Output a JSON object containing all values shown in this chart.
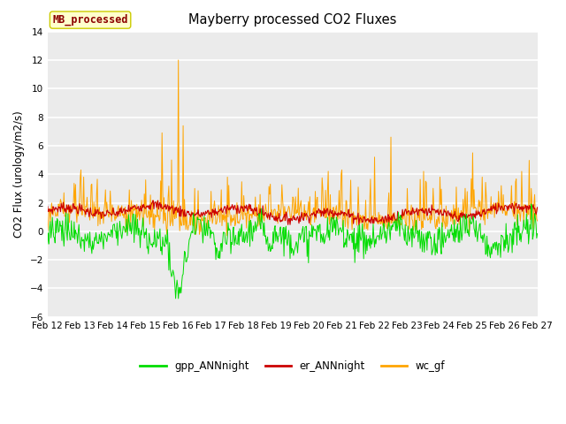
{
  "title": "Mayberry processed CO2 Fluxes",
  "ylabel": "CO2 Flux (urology/m2/s)",
  "ylim": [
    -6,
    14
  ],
  "yticks": [
    -6,
    -4,
    -2,
    0,
    2,
    4,
    6,
    8,
    10,
    12,
    14
  ],
  "background_color": "#ebebeb",
  "grid_color": "#ffffff",
  "legend_label": "MB_processed",
  "legend_text_color": "#8b0000",
  "legend_box_facecolor": "#ffffcc",
  "legend_box_edgecolor": "#cccc00",
  "series": {
    "gpp_ANNnight": {
      "color": "#00dd00",
      "label": "gpp_ANNnight"
    },
    "er_ANNnight": {
      "color": "#cc0000",
      "label": "er_ANNnight"
    },
    "wc_gf": {
      "color": "#ffa500",
      "label": "wc_gf"
    }
  },
  "x_tick_labels": [
    "Feb 12",
    "Feb 13",
    "Feb 14",
    "Feb 15",
    "Feb 16",
    "Feb 17",
    "Feb 18",
    "Feb 19",
    "Feb 20",
    "Feb 21",
    "Feb 22",
    "Feb 23",
    "Feb 24",
    "Feb 25",
    "Feb 26",
    "Feb 27"
  ],
  "n_points": 720,
  "n_days": 15
}
